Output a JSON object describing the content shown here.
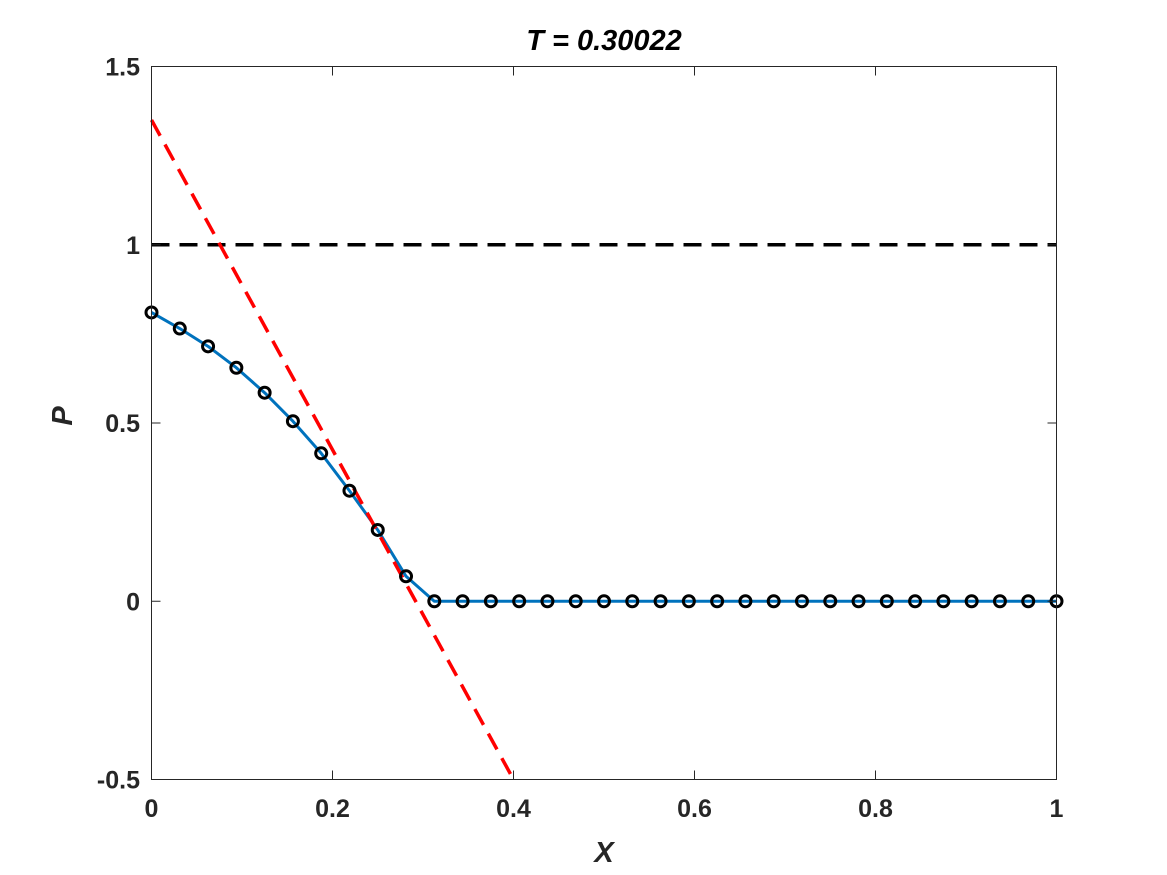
{
  "chart_data": {
    "type": "line",
    "title": "T = 0.30022",
    "xlabel": "X",
    "ylabel": "P",
    "xlim": [
      0,
      1
    ],
    "ylim": [
      -0.5,
      1.5
    ],
    "x_ticks": [
      0,
      0.2,
      0.4,
      0.6,
      0.8,
      1
    ],
    "x_tick_labels": [
      "0",
      "0.2",
      "0.4",
      "0.6",
      "0.8",
      "1"
    ],
    "y_ticks": [
      -0.5,
      0,
      0.5,
      1,
      1.5
    ],
    "y_tick_labels": [
      "-0.5",
      "0",
      "0.5",
      "1",
      "1.5"
    ],
    "grid": false,
    "box": true,
    "series": [
      {
        "style": "solid",
        "color": "#0072BD",
        "marker": "circle",
        "marker_color": "#000000",
        "x": [
          0,
          0.03125,
          0.0625,
          0.09375,
          0.125,
          0.15625,
          0.1875,
          0.21875,
          0.25,
          0.28125,
          0.3125,
          0.34375,
          0.375,
          0.40625,
          0.4375,
          0.46875,
          0.5,
          0.53125,
          0.5625,
          0.59375,
          0.625,
          0.65625,
          0.6875,
          0.71875,
          0.75,
          0.78125,
          0.8125,
          0.84375,
          0.875,
          0.90625,
          0.9375,
          0.96875,
          1
        ],
        "y": [
          0.81,
          0.765,
          0.715,
          0.655,
          0.585,
          0.505,
          0.415,
          0.31,
          0.2,
          0.07,
          0,
          0,
          0,
          0,
          0,
          0,
          0,
          0,
          0,
          0,
          0,
          0,
          0,
          0,
          0,
          0,
          0,
          0,
          0,
          0,
          0,
          0,
          0
        ]
      },
      {
        "style": "dashed",
        "color": "#FF0000",
        "x": [
          0,
          0.4
        ],
        "y": [
          1.35,
          -0.5
        ]
      },
      {
        "style": "dashed",
        "color": "#000000",
        "x": [
          0,
          1
        ],
        "y": [
          1,
          1
        ]
      }
    ]
  }
}
